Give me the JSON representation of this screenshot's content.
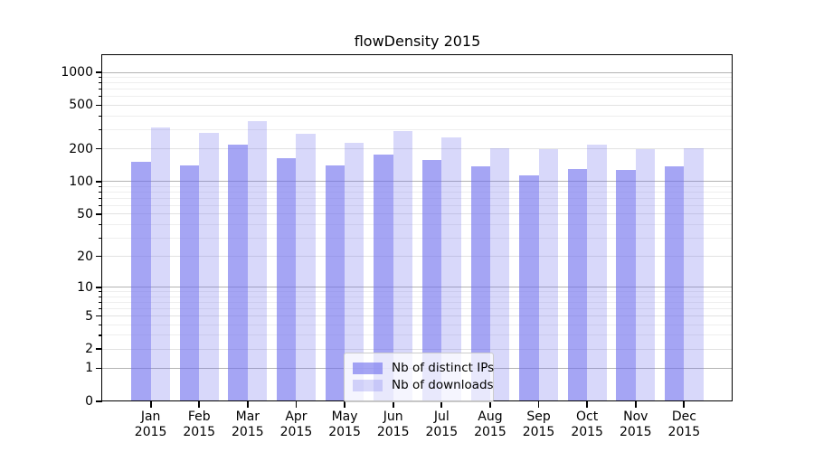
{
  "title": "flowDensity 2015",
  "colors": {
    "bar_base": "#6e6eee",
    "series_fills": [
      "rgba(110,110,238,0.62)",
      "rgba(110,110,238,0.27)"
    ],
    "grid_major": "#b3b3b3",
    "grid_labeled_minor": "#e2e2e2",
    "grid_minor": "#eeeeee",
    "axis": "#000000",
    "legend_border": "#cccccc"
  },
  "chart_data": {
    "type": "bar",
    "title": "flowDensity 2015",
    "categories": [
      "Jan 2015",
      "Feb 2015",
      "Mar 2015",
      "Apr 2015",
      "May 2015",
      "Jun 2015",
      "Jul 2015",
      "Aug 2015",
      "Sep 2015",
      "Oct 2015",
      "Nov 2015",
      "Dec 2015"
    ],
    "series": [
      {
        "name": "Nb of distinct IPs",
        "values": [
          153,
          142,
          220,
          163,
          142,
          177,
          159,
          137,
          115,
          131,
          128,
          137
        ]
      },
      {
        "name": "Nb of downloads",
        "values": [
          316,
          278,
          358,
          273,
          227,
          290,
          256,
          201,
          198,
          218,
          200,
          204
        ]
      }
    ],
    "xlabel": "",
    "ylabel": "",
    "yscale": "log1p",
    "ylim": [
      0,
      1430
    ],
    "ytick_labels": [
      1000,
      500,
      200,
      100,
      50,
      20,
      10,
      5,
      2,
      1,
      0
    ],
    "ytick_minor": [
      3,
      4,
      6,
      7,
      8,
      9,
      30,
      40,
      60,
      70,
      80,
      90,
      300,
      400,
      600,
      700,
      800,
      900
    ],
    "grid": "horizontal",
    "legend_position": "lower center inside"
  }
}
